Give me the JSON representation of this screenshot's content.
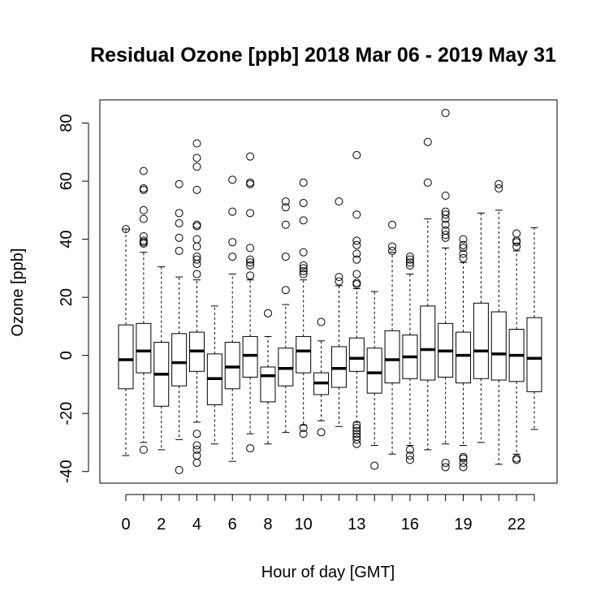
{
  "chart_data": {
    "type": "boxplot",
    "title": "Residual Ozone [ppb] 2018 Mar 06 - 2019 May 31",
    "xlabel": "Hour of day [GMT]",
    "ylabel": "Ozone [ppb]",
    "ylim": [
      -44,
      88
    ],
    "y_ticks": [
      -40,
      -20,
      0,
      20,
      40,
      60,
      80
    ],
    "x_tick_labels": [
      {
        "hour": 0,
        "label": "0"
      },
      {
        "hour": 2,
        "label": "2"
      },
      {
        "hour": 4,
        "label": "4"
      },
      {
        "hour": 6,
        "label": "6"
      },
      {
        "hour": 8,
        "label": "8"
      },
      {
        "hour": 10,
        "label": "10"
      },
      {
        "hour": 13,
        "label": "13"
      },
      {
        "hour": 16,
        "label": "16"
      },
      {
        "hour": 19,
        "label": "19"
      },
      {
        "hour": 22,
        "label": "22"
      }
    ],
    "boxes": [
      {
        "hour": 0,
        "whisker_low": -34.5,
        "q1": -11.5,
        "median": -1.5,
        "q3": 10.5,
        "whisker_high": 43.5,
        "outliers": [
          43.5
        ]
      },
      {
        "hour": 1,
        "whisker_low": -30,
        "q1": -6,
        "median": 1.5,
        "q3": 11,
        "whisker_high": 35.5,
        "outliers": [
          -32.5,
          38.5,
          39,
          39.5,
          41,
          47,
          50,
          57,
          57.5,
          63.5
        ]
      },
      {
        "hour": 2,
        "whisker_low": -32.5,
        "q1": -17.5,
        "median": -6.5,
        "q3": 4.5,
        "whisker_high": 30.5,
        "outliers": []
      },
      {
        "hour": 3,
        "whisker_low": -29,
        "q1": -10.5,
        "median": -2.5,
        "q3": 7.5,
        "whisker_high": 27,
        "outliers": [
          -39.5,
          36,
          40.5,
          45.5,
          49,
          59
        ]
      },
      {
        "hour": 4,
        "whisker_low": -23,
        "q1": -5.5,
        "median": 1.5,
        "q3": 8,
        "whisker_high": 26,
        "outliers": [
          -37,
          -34.5,
          -32.5,
          -31,
          -27,
          28,
          31.5,
          33,
          34,
          37.5,
          40,
          44.5,
          45,
          57,
          65,
          68,
          73
        ]
      },
      {
        "hour": 5,
        "whisker_low": -30.5,
        "q1": -17,
        "median": -8,
        "q3": 0.5,
        "whisker_high": 17,
        "outliers": []
      },
      {
        "hour": 6,
        "whisker_low": -36.5,
        "q1": -11.5,
        "median": -4,
        "q3": 4.5,
        "whisker_high": 28,
        "outliers": [
          34,
          39,
          49.5,
          60.5
        ]
      },
      {
        "hour": 7,
        "whisker_low": -27,
        "q1": -7.5,
        "median": 0,
        "q3": 6.5,
        "whisker_high": 26,
        "outliers": [
          -32,
          27.5,
          31,
          32,
          33,
          37,
          49,
          59,
          59.5,
          68.5
        ]
      },
      {
        "hour": 8,
        "whisker_low": -30.5,
        "q1": -16,
        "median": -7,
        "q3": -4,
        "whisker_high": 6.5,
        "outliers": [
          14.5
        ]
      },
      {
        "hour": 9,
        "whisker_low": -26.5,
        "q1": -10.5,
        "median": -4.5,
        "q3": 2.5,
        "whisker_high": 17.5,
        "outliers": [
          22.5,
          34,
          45,
          51,
          53
        ]
      },
      {
        "hour": 10,
        "whisker_low": -24,
        "q1": -6,
        "median": 1.5,
        "q3": 6.5,
        "whisker_high": 26,
        "outliers": [
          -27,
          -25,
          28,
          29,
          30,
          31,
          35.5,
          46.5,
          52.5,
          59.5
        ]
      },
      {
        "hour": 11,
        "whisker_low": -22.5,
        "q1": -13.5,
        "median": -9.5,
        "q3": -6,
        "whisker_high": 5,
        "outliers": [
          -26.5,
          11.5
        ]
      },
      {
        "hour": 12,
        "whisker_low": -24.5,
        "q1": -11,
        "median": -4.5,
        "q3": 3,
        "whisker_high": 24,
        "outliers": [
          25.5,
          27,
          53
        ]
      },
      {
        "hour": 13,
        "whisker_low": -23,
        "q1": -5.5,
        "median": -1,
        "q3": 6,
        "whisker_high": 23,
        "outliers": [
          -30.5,
          -29,
          -28,
          -27,
          -26,
          -25,
          -24,
          24.5,
          25,
          28,
          33,
          35,
          38,
          39.5,
          48.5,
          69
        ]
      },
      {
        "hour": 14,
        "whisker_low": -31,
        "q1": -13,
        "median": -6,
        "q3": 2.5,
        "whisker_high": 22,
        "outliers": [
          -38
        ]
      },
      {
        "hour": 15,
        "whisker_low": -34,
        "q1": -9.5,
        "median": -1.5,
        "q3": 8.5,
        "whisker_high": 35.5,
        "outliers": [
          36,
          37.5,
          45
        ]
      },
      {
        "hour": 16,
        "whisker_low": -31,
        "q1": -8,
        "median": -0.5,
        "q3": 7,
        "whisker_high": 28,
        "outliers": [
          -36,
          -34.5,
          -32.5,
          31,
          32,
          33,
          34
        ]
      },
      {
        "hour": 17,
        "whisker_low": -32.5,
        "q1": -8.5,
        "median": 2,
        "q3": 17,
        "whisker_high": 47,
        "outliers": [
          59.5,
          73.5
        ]
      },
      {
        "hour": 18,
        "whisker_low": -30.5,
        "q1": -7.5,
        "median": 1.5,
        "q3": 11,
        "whisker_high": 37,
        "outliers": [
          -38.5,
          -37,
          40.5,
          41.5,
          43,
          45,
          47,
          48.5,
          49.5,
          55,
          83.5
        ]
      },
      {
        "hour": 19,
        "whisker_low": -31,
        "q1": -9.5,
        "median": 0,
        "q3": 8,
        "whisker_high": 32,
        "outliers": [
          -38.5,
          -37,
          -35.5,
          -35,
          33.5,
          35,
          37,
          38,
          40
        ]
      },
      {
        "hour": 20,
        "whisker_low": -30,
        "q1": -8,
        "median": 1.5,
        "q3": 18,
        "whisker_high": 49,
        "outliers": []
      },
      {
        "hour": 21,
        "whisker_low": -37.5,
        "q1": -8.5,
        "median": 0.5,
        "q3": 15,
        "whisker_high": 50,
        "outliers": [
          57.5,
          59
        ]
      },
      {
        "hour": 22,
        "whisker_low": -34,
        "q1": -9,
        "median": 0,
        "q3": 9,
        "whisker_high": 36,
        "outliers": [
          -36,
          -35.5,
          37.5,
          39,
          39.5,
          42
        ]
      },
      {
        "hour": 23,
        "whisker_low": -25.5,
        "q1": -12.5,
        "median": -1,
        "q3": 13,
        "whisker_high": 44,
        "outliers": []
      }
    ]
  }
}
